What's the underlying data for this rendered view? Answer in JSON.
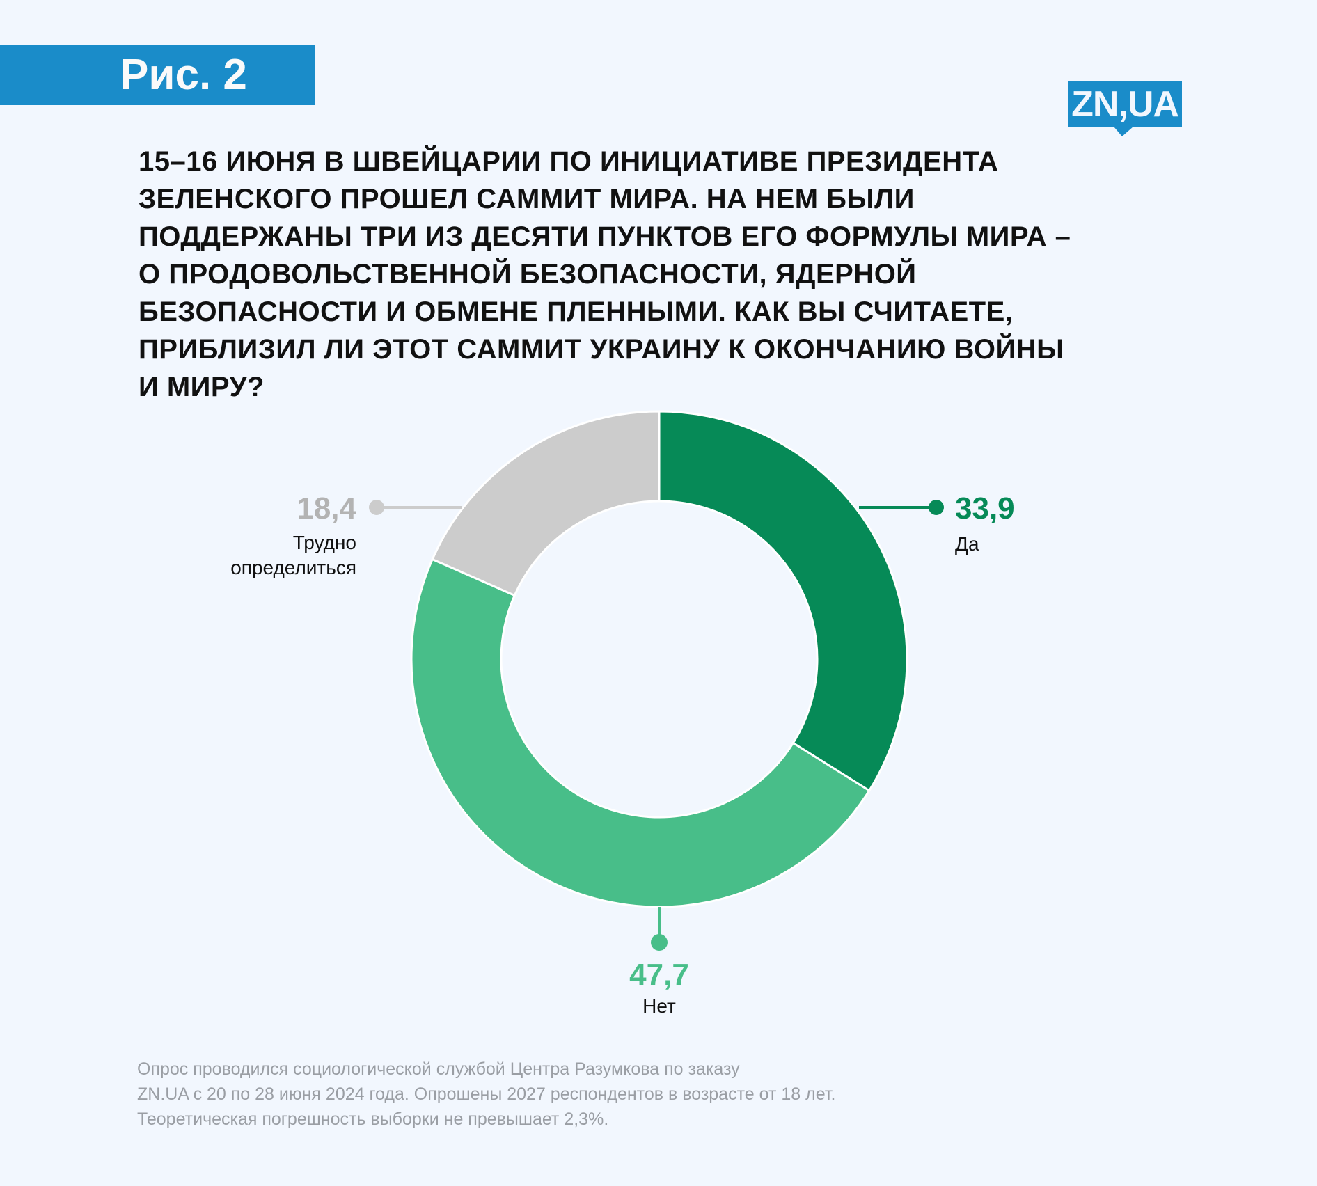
{
  "figure_label": "Рис. 2",
  "logo": "ZN,UA",
  "title_lines": [
    "15–16 ИЮНЯ В ШВЕЙЦАРИИ ПО ИНИЦИАТИВЕ ПРЕЗИДЕНТА",
    "ЗЕЛЕНСКОГО ПРОШЕЛ САММИТ МИРА. НА НЕМ БЫЛИ",
    "ПОДДЕРЖАНЫ ТРИ ИЗ ДЕСЯТИ ПУНКТОВ ЕГО ФОРМУЛЫ МИРА –",
    "О ПРОДОВОЛЬСТВЕННОЙ БЕЗОПАСНОСТИ, ЯДЕРНОЙ",
    "БЕЗОПАСНОСТИ И ОБМЕНЕ ПЛЕННЫМИ. КАК ВЫ СЧИТАЕТЕ,",
    "ПРИБЛИЗИЛ ЛИ ЭТОТ САММИТ УКРАИНУ К ОКОНЧАНИЮ ВОЙНЫ",
    "И МИРУ?"
  ],
  "chart_data": {
    "type": "pie",
    "donut": true,
    "start": "top, clockwise",
    "categories": [
      "Да",
      "Нет",
      "Трудно определиться"
    ],
    "values": [
      33.9,
      47.7,
      18.4
    ],
    "value_labels": [
      "33,9",
      "47,7",
      "18,4"
    ],
    "label_lines": [
      [
        "Да"
      ],
      [
        "Нет"
      ],
      [
        "Трудно",
        "определиться"
      ]
    ],
    "colors": [
      "#068a57",
      "#48be89",
      "#cccccc"
    ],
    "label_colors": [
      "#068a57",
      "#48be89",
      "#b3b3b3"
    ]
  },
  "footer_lines": [
    "Опрос проводился социологической службой Центра Разумкова по заказу",
    "ZN.UA с 20 по 28 июня 2024 года. Опрошены 2027 респондентов в возрасте от 18 лет.",
    "Теоретическая погрешность выборки не превышает 2,3%."
  ]
}
